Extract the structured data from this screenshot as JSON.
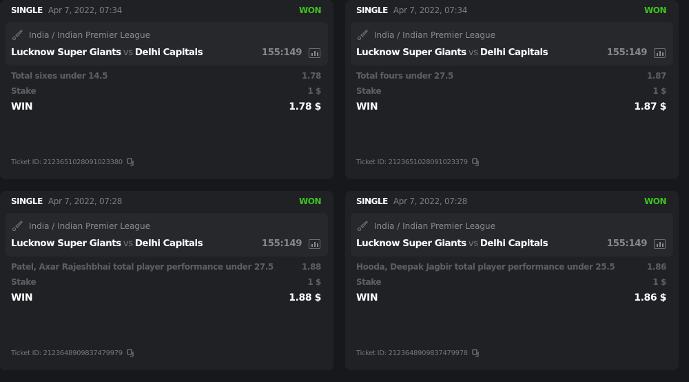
{
  "colors": {
    "won": "#3fc41e"
  },
  "tickets": [
    {
      "type": "SINGLE",
      "date": "Apr 7, 2022, 07:34",
      "status": "WON",
      "league": "India / Indian Premier League",
      "home": "Lucknow Super Giants",
      "vs": "vs",
      "away": "Delhi Capitals",
      "score": "155:149",
      "market": "Total sixes under 14.5",
      "odds": "1.78",
      "stake_label": "Stake",
      "stake": "1 $",
      "win_label": "WIN",
      "win": "1.78 $",
      "ticket_id": "Ticket ID: 2123651028091023380"
    },
    {
      "type": "SINGLE",
      "date": "Apr 7, 2022, 07:34",
      "status": "WON",
      "league": "India / Indian Premier League",
      "home": "Lucknow Super Giants",
      "vs": "vs",
      "away": "Delhi Capitals",
      "score": "155:149",
      "market": "Total fours under 27.5",
      "odds": "1.87",
      "stake_label": "Stake",
      "stake": "1 $",
      "win_label": "WIN",
      "win": "1.87 $",
      "ticket_id": "Ticket ID: 2123651028091023379"
    },
    {
      "type": "SINGLE",
      "date": "Apr 7, 2022, 07:28",
      "status": "WON",
      "league": "India / Indian Premier League",
      "home": "Lucknow Super Giants",
      "vs": "vs",
      "away": "Delhi Capitals",
      "score": "155:149",
      "market": "Patel, Axar Rajeshbhai total player performance under 27.5",
      "odds": "1.88",
      "stake_label": "Stake",
      "stake": "1 $",
      "win_label": "WIN",
      "win": "1.88 $",
      "ticket_id": "Ticket ID: 2123648909837479979"
    },
    {
      "type": "SINGLE",
      "date": "Apr 7, 2022, 07:28",
      "status": "WON",
      "league": "India / Indian Premier League",
      "home": "Lucknow Super Giants",
      "vs": "vs",
      "away": "Delhi Capitals",
      "score": "155:149",
      "market": "Hooda, Deepak Jagbir total player performance under 25.5",
      "odds": "1.86",
      "stake_label": "Stake",
      "stake": "1 $",
      "win_label": "WIN",
      "win": "1.86 $",
      "ticket_id": "Ticket ID: 2123648909837479978"
    }
  ]
}
